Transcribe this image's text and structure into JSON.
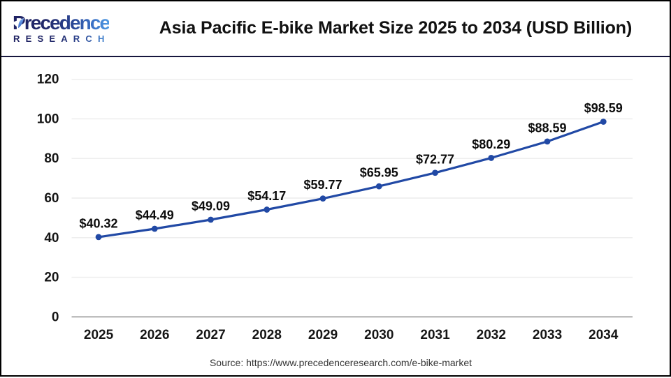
{
  "header": {
    "logo": {
      "line1": "Precedence",
      "line2": "RESEARCH",
      "gradient_start": "#1e2161",
      "gradient_end": "#4f9ae3"
    },
    "title": "Asia Pacific E-bike Market Size 2025 to 2034 (USD Billion)",
    "separator_color": "#16163d"
  },
  "chart_data": {
    "type": "line",
    "title": "Asia Pacific E-bike Market Size 2025 to 2034 (USD Billion)",
    "categories": [
      "2025",
      "2026",
      "2027",
      "2028",
      "2029",
      "2030",
      "2031",
      "2032",
      "2033",
      "2034"
    ],
    "values": [
      40.32,
      44.49,
      49.09,
      54.17,
      59.77,
      65.95,
      72.77,
      80.29,
      88.59,
      98.59
    ],
    "labels": [
      "$40.32",
      "$44.49",
      "$49.09",
      "$54.17",
      "$59.77",
      "$65.95",
      "$72.77",
      "$80.29",
      "$88.59",
      "$98.59"
    ],
    "xlabel": "",
    "ylabel": "",
    "ylim": [
      0,
      120
    ],
    "ytick_step": 20,
    "yticks": [
      0,
      20,
      40,
      60,
      80,
      100,
      120
    ],
    "grid": true,
    "legend": false,
    "line_color": "#2149a5",
    "marker_color": "#2149a5",
    "grid_color": "#ececec",
    "axis_line_color": "#a8a8a8",
    "tick_label_color": "#161616",
    "data_label_color": "#0d0d0d"
  },
  "footer": {
    "source_text": "Source: https://www.precedenceresearch.com/e-bike-market"
  }
}
